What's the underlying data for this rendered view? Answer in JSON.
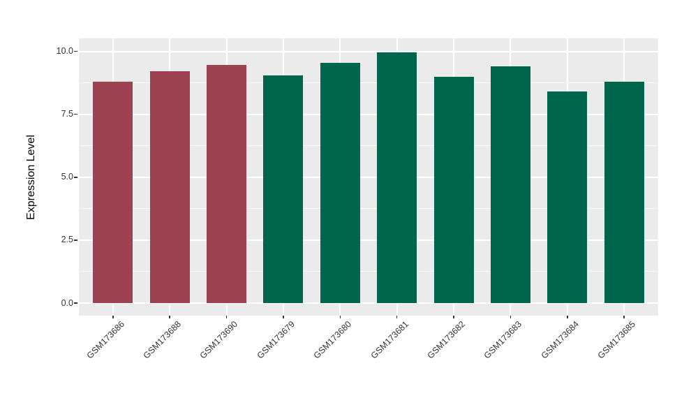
{
  "chart_data": {
    "type": "bar",
    "title": "",
    "ylabel": "Expression Level",
    "xlabel": "",
    "categories": [
      "GSM173686",
      "GSM173688",
      "GSM173690",
      "GSM173679",
      "GSM173680",
      "GSM173681",
      "GSM173682",
      "GSM173683",
      "GSM173684",
      "GSM173685"
    ],
    "values": [
      8.8,
      9.2,
      9.45,
      9.05,
      9.55,
      9.95,
      9.0,
      9.4,
      8.4,
      8.8
    ],
    "bar_colors": [
      "#9C4251",
      "#9C4251",
      "#9C4251",
      "#00664B",
      "#00664B",
      "#00664B",
      "#00664B",
      "#00664B",
      "#00664B",
      "#00664B"
    ],
    "color_groups": [
      {
        "color": "#9C4251",
        "samples": [
          "GSM173686",
          "GSM173688",
          "GSM173690"
        ]
      },
      {
        "color": "#00664B",
        "samples": [
          "GSM173679",
          "GSM173680",
          "GSM173681",
          "GSM173682",
          "GSM173683",
          "GSM173684",
          "GSM173685"
        ]
      }
    ],
    "ylim": [
      0,
      10.5
    ],
    "ytick_labels": [
      "0.0",
      "2.5",
      "5.0",
      "7.5",
      "10.0"
    ],
    "ytick_values": [
      0,
      2.5,
      5,
      7.5,
      10
    ],
    "minor_ytick_values": [
      1.25,
      3.75,
      6.25,
      8.75
    ],
    "x_tick_angle": 45,
    "grid": "major+minor",
    "legend": "none",
    "panel_background": "#EBEBEB",
    "grid_color": "#FFFFFF"
  }
}
